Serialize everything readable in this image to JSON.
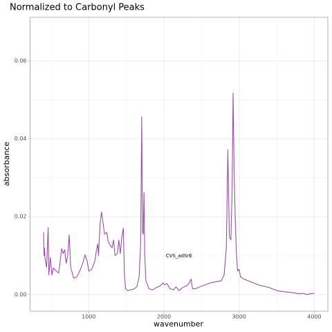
{
  "chart_data": {
    "type": "line",
    "title": "Normalized to Carbonyl Peaks",
    "x_label": "wavenumber",
    "y_label": "absorbance",
    "color": "#984ea3",
    "grid": true,
    "xlim": [
      220,
      4180
    ],
    "ylim": [
      -0.0043,
      0.0712
    ],
    "xticks": [
      1000,
      2000,
      3000,
      4000
    ],
    "yticks": [
      {
        "value": 0,
        "label": "0.00"
      },
      {
        "value": 0.02,
        "label": "0.02"
      },
      {
        "value": 0.04,
        "label": "0.04"
      },
      {
        "value": 0.06,
        "label": "0.06"
      }
    ],
    "xminor": [
      500,
      1500,
      2500,
      3500
    ],
    "yminor": [
      0.01,
      0.03,
      0.05,
      0.07
    ],
    "annotation": {
      "text": "CVS_adSrE",
      "x": 2200,
      "y": 0.0099
    },
    "x": [
      400,
      405,
      410,
      420,
      440,
      460,
      470,
      490,
      510,
      530,
      560,
      600,
      620,
      640,
      660,
      680,
      700,
      720,
      740,
      760,
      800,
      840,
      880,
      920,
      950,
      980,
      1000,
      1040,
      1080,
      1100,
      1120,
      1130,
      1150,
      1170,
      1190,
      1210,
      1240,
      1260,
      1290,
      1310,
      1330,
      1350,
      1380,
      1400,
      1420,
      1440,
      1460,
      1475,
      1490,
      1520,
      1560,
      1600,
      1640,
      1670,
      1690,
      1705,
      1715,
      1725,
      1735,
      1745,
      1760,
      1800,
      1850,
      1900,
      1950,
      1990,
      2010,
      2040,
      2080,
      2130,
      2160,
      2180,
      2200,
      2250,
      2300,
      2340,
      2360,
      2380,
      2420,
      2480,
      2550,
      2620,
      2700,
      2760,
      2800,
      2830,
      2850,
      2870,
      2890,
      2905,
      2920,
      2935,
      2950,
      2965,
      2980,
      3000,
      3020,
      3060,
      3150,
      3250,
      3400,
      3500,
      3600,
      3700,
      3800,
      3850,
      3900,
      3950,
      4000
    ],
    "values": [
      0.016,
      0.01,
      0.012,
      0.009,
      0.007,
      0.0172,
      0.005,
      0.0095,
      0.005,
      0.0068,
      0.0062,
      0.0055,
      0.0085,
      0.0118,
      0.0105,
      0.0115,
      0.008,
      0.01,
      0.0153,
      0.007,
      0.0042,
      0.0045,
      0.006,
      0.008,
      0.0102,
      0.0085,
      0.006,
      0.0065,
      0.0085,
      0.011,
      0.013,
      0.01,
      0.018,
      0.0212,
      0.0185,
      0.0155,
      0.016,
      0.0135,
      0.0125,
      0.012,
      0.014,
      0.01,
      0.0105,
      0.014,
      0.0105,
      0.015,
      0.017,
      0.005,
      0.0015,
      0.001,
      0.0012,
      0.0014,
      0.002,
      0.0045,
      0.013,
      0.0456,
      0.016,
      0.0155,
      0.0262,
      0.01,
      0.0035,
      0.0015,
      0.0012,
      0.0018,
      0.0022,
      0.003,
      0.0025,
      0.0028,
      0.0015,
      0.0012,
      0.002,
      0.0015,
      0.001,
      0.0018,
      0.0022,
      0.003,
      0.004,
      0.0015,
      0.0015,
      0.002,
      0.0025,
      0.003,
      0.0033,
      0.0035,
      0.005,
      0.012,
      0.0372,
      0.015,
      0.014,
      0.025,
      0.0517,
      0.03,
      0.0185,
      0.01,
      0.006,
      0.0065,
      0.0045,
      0.004,
      0.0033,
      0.0025,
      0.0018,
      0.001,
      0.0007,
      0.0005,
      0.0002,
      0.0003,
      0,
      0.0002,
      0.0003
    ]
  }
}
